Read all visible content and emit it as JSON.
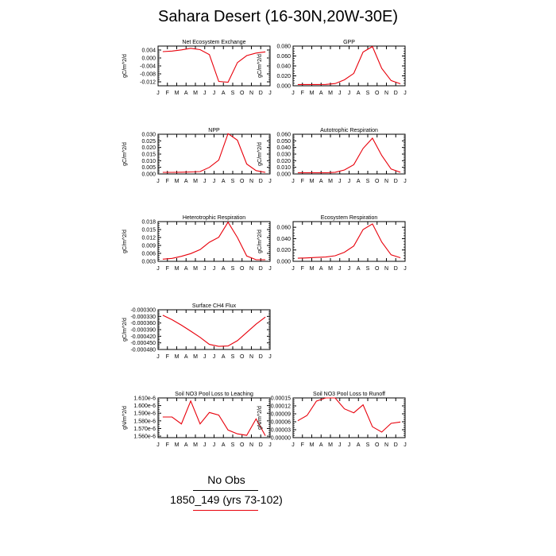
{
  "figure": {
    "title": "Sahara Desert (16-30N,20W-30E)"
  },
  "colors": {
    "series": "#e8000b",
    "axis": "#000000",
    "obs_line": "#000000"
  },
  "months": [
    "J",
    "F",
    "M",
    "A",
    "M",
    "J",
    "J",
    "A",
    "S",
    "O",
    "N",
    "D",
    "J"
  ],
  "chart_data": [
    {
      "type": "line",
      "title": "Net Ecosystem Exchange",
      "ylabel": "gC/m^2/d",
      "ylim": [
        -0.014,
        0.006
      ],
      "yticks": [
        0.004,
        0.0,
        -0.004,
        -0.008,
        -0.012
      ],
      "yticklabels": [
        "0.004",
        "0.000",
        "-0.004",
        "-0.008",
        "-0.012"
      ],
      "x": [
        0.5,
        1.5,
        2.5,
        3.5,
        4.5,
        5.5,
        6.5,
        7.5,
        8.5,
        9.5,
        10.5,
        11.5
      ],
      "values": [
        0.0032,
        0.0035,
        0.0041,
        0.0049,
        0.0042,
        0.0017,
        -0.0118,
        -0.0122,
        -0.0023,
        0.0012,
        0.0025,
        0.0031
      ]
    },
    {
      "type": "line",
      "title": "GPP",
      "ylabel": "gC/m^2/d",
      "ylim": [
        0.0,
        0.08
      ],
      "yticks": [
        0.0,
        0.02,
        0.04,
        0.06,
        0.08
      ],
      "yticklabels": [
        "0.000",
        "0.020",
        "0.040",
        "0.060",
        "0.080"
      ],
      "x": [
        0.5,
        1.5,
        2.5,
        3.5,
        4.5,
        5.5,
        6.5,
        7.5,
        8.5,
        9.5,
        10.5,
        11.5
      ],
      "values": [
        0.0025,
        0.0025,
        0.0025,
        0.0028,
        0.0045,
        0.012,
        0.025,
        0.068,
        0.079,
        0.035,
        0.0105,
        0.004
      ]
    },
    {
      "type": "line",
      "title": "NPP",
      "ylabel": "gC/m^2/d",
      "ylim": [
        0.0,
        0.03
      ],
      "yticks": [
        0.0,
        0.005,
        0.01,
        0.015,
        0.02,
        0.025,
        0.03
      ],
      "yticklabels": [
        "0.000",
        "0.005",
        "0.010",
        "0.015",
        "0.020",
        "0.025",
        "0.030"
      ],
      "x": [
        0.5,
        1.5,
        2.5,
        3.5,
        4.5,
        5.5,
        6.5,
        7.5,
        8.5,
        9.5,
        10.5,
        11.5
      ],
      "values": [
        0.0012,
        0.0012,
        0.0013,
        0.0015,
        0.0018,
        0.005,
        0.0105,
        0.0305,
        0.0255,
        0.0075,
        0.0025,
        0.0012
      ]
    },
    {
      "type": "line",
      "title": "Autotrophic Respiration",
      "ylabel": "gC/m^2/d",
      "ylim": [
        0.0,
        0.06
      ],
      "yticks": [
        0.0,
        0.01,
        0.02,
        0.03,
        0.04,
        0.05,
        0.06
      ],
      "yticklabels": [
        "0.000",
        "0.010",
        "0.020",
        "0.030",
        "0.040",
        "0.050",
        "0.060"
      ],
      "x": [
        0.5,
        1.5,
        2.5,
        3.5,
        4.5,
        5.5,
        6.5,
        7.5,
        8.5,
        9.5,
        10.5,
        11.5
      ],
      "values": [
        0.0018,
        0.0018,
        0.0018,
        0.0018,
        0.0025,
        0.006,
        0.014,
        0.0385,
        0.054,
        0.028,
        0.0075,
        0.0025
      ]
    },
    {
      "type": "line",
      "title": "Heterotrophic Respiration",
      "ylabel": "gC/m^2/d",
      "ylim": [
        0.003,
        0.018
      ],
      "yticks": [
        0.003,
        0.006,
        0.009,
        0.012,
        0.015,
        0.018
      ],
      "yticklabels": [
        "0.003",
        "0.006",
        "0.009",
        "0.012",
        "0.015",
        "0.018"
      ],
      "x": [
        0.5,
        1.5,
        2.5,
        3.5,
        4.5,
        5.5,
        6.5,
        7.5,
        8.5,
        9.5,
        10.5,
        11.5
      ],
      "values": [
        0.0038,
        0.0041,
        0.0049,
        0.0059,
        0.0074,
        0.0102,
        0.0121,
        0.0178,
        0.012,
        0.005,
        0.0036,
        0.0036
      ]
    },
    {
      "type": "line",
      "title": "Ecosystem Respiration",
      "ylabel": "gC/m^2/d",
      "ylim": [
        0.0,
        0.07
      ],
      "yticks": [
        0.0,
        0.02,
        0.04,
        0.06
      ],
      "yticklabels": [
        "0.000",
        "0.020",
        "0.040",
        "0.060"
      ],
      "x": [
        0.5,
        1.5,
        2.5,
        3.5,
        4.5,
        5.5,
        6.5,
        7.5,
        8.5,
        9.5,
        10.5,
        11.5
      ],
      "values": [
        0.0055,
        0.006,
        0.0068,
        0.0075,
        0.0098,
        0.016,
        0.027,
        0.056,
        0.066,
        0.034,
        0.0115,
        0.0063
      ]
    },
    {
      "type": "line",
      "title": "Surface CH4 Flux",
      "ylabel": "gC/m^2/d",
      "ylim": [
        -0.00048,
        -0.0003
      ],
      "yticks": [
        -0.0003,
        -0.00033,
        -0.00036,
        -0.00039,
        -0.00042,
        -0.00045,
        -0.00048
      ],
      "yticklabels": [
        "-0.000300",
        "-0.000330",
        "-0.000360",
        "-0.000390",
        "-0.000420",
        "-0.000450",
        "-0.000480"
      ],
      "x": [
        0.5,
        1.5,
        2.5,
        3.5,
        4.5,
        5.5,
        6.5,
        7.5,
        8.5,
        9.5,
        10.5,
        11.5
      ],
      "values": [
        -0.000325,
        -0.000345,
        -0.00037,
        -0.000397,
        -0.000425,
        -0.000457,
        -0.000466,
        -0.000464,
        -0.00044,
        -0.000403,
        -0.000365,
        -0.000333
      ]
    },
    {
      "type": "line",
      "title": "Soil NO3 Pool Loss to Leaching",
      "ylabel": "gN/m^2/d",
      "ylim": [
        1.558e-06,
        1.61e-06
      ],
      "yticks": [
        1.56e-06,
        1.57e-06,
        1.58e-06,
        1.59e-06,
        1.6e-06,
        1.61e-06
      ],
      "yticklabels": [
        "1.560e-6",
        "1.570e-6",
        "1.580e-6",
        "1.590e-6",
        "1.600e-6",
        "1.610e-6"
      ],
      "x": [
        0.5,
        1.5,
        2.5,
        3.5,
        4.5,
        5.5,
        6.5,
        7.5,
        8.5,
        9.5,
        10.5,
        11.5
      ],
      "values": [
        1.585e-06,
        1.585e-06,
        1.576e-06,
        1.606e-06,
        1.576e-06,
        1.591e-06,
        1.5875e-06,
        1.568e-06,
        1.563e-06,
        1.561e-06,
        1.5825e-06,
        1.5605e-06
      ]
    },
    {
      "type": "line",
      "title": "Soil NO3 Pool Loss to Runoff",
      "ylabel": "gN/m^2/d",
      "ylim": [
        0.0,
        0.00015
      ],
      "yticks": [
        0.0,
        3e-05,
        6e-05,
        9e-05,
        0.00012,
        0.00015
      ],
      "yticklabels": [
        "0.00000",
        "0.00003",
        "0.00006",
        "0.00009",
        "0.00012",
        "0.00015"
      ],
      "x": [
        0.5,
        1.5,
        2.5,
        3.5,
        4.5,
        5.5,
        6.5,
        7.5,
        8.5,
        9.5,
        10.5,
        11.5
      ],
      "values": [
        6.4e-05,
        8.4e-05,
        0.000138,
        0.00015,
        0.00015,
        0.000109,
        9.4e-05,
        0.000124,
        4.1e-05,
        2.1e-05,
        5.4e-05,
        5.9e-05
      ]
    }
  ],
  "legend": {
    "obs_label": "No Obs",
    "model_label": "1850_149 (yrs 73-102)"
  }
}
